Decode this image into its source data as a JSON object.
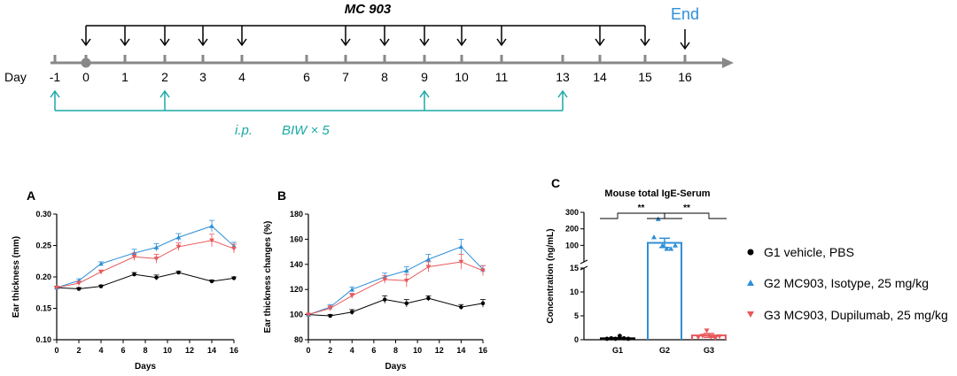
{
  "timeline": {
    "title": "MC 903",
    "end_label": "End",
    "day_label": "Day",
    "days": [
      "-1",
      "0",
      "1",
      "2",
      "3",
      "4",
      "6",
      "7",
      "8",
      "9",
      "10",
      "11",
      "13",
      "14",
      "15",
      "16"
    ],
    "ip_label": "i.p.",
    "ip_schedule": "BIW  × 5",
    "mc903_days": [
      "0",
      "1",
      "2",
      "3",
      "4",
      "7",
      "8",
      "9",
      "10",
      "11",
      "14",
      "15"
    ],
    "end_day": "16",
    "ip_days": [
      "-1",
      "2",
      "9",
      "13"
    ],
    "colors": {
      "axis": "#888888",
      "arrows": "#000000",
      "ip": "#1aa9a6",
      "end": "#2f8fd8"
    }
  },
  "legend": [
    {
      "label": "G1 vehicle, PBS",
      "marker": "circle",
      "color": "#000000"
    },
    {
      "label": "G2 MC903, Isotype, 25 mg/kg",
      "marker": "triangle-up",
      "color": "#2f8fd8"
    },
    {
      "label": "G3 MC903, Dupilumab, 25 mg/kg",
      "marker": "triangle-down",
      "color": "#e8585a"
    }
  ],
  "chart_data": [
    {
      "panel": "A",
      "type": "line",
      "title": "",
      "xlabel": "Days",
      "ylabel": "Ear thickness (mm)",
      "x": [
        0,
        2,
        4,
        7,
        9,
        11,
        14,
        16
      ],
      "xticks": [
        "0",
        "2",
        "4",
        "6",
        "8",
        "10",
        "12",
        "14",
        "16"
      ],
      "yticks": [
        "0.10",
        "0.15",
        "0.20",
        "0.25",
        "0.30"
      ],
      "xlim": [
        0,
        16
      ],
      "ylim": [
        0.1,
        0.3
      ],
      "series": [
        {
          "group": "G1",
          "color": "#000000",
          "marker": "circle",
          "values": [
            0.183,
            0.181,
            0.185,
            0.204,
            0.199,
            0.207,
            0.193,
            0.198
          ],
          "errors": [
            0.002,
            0.002,
            0.002,
            0.003,
            0.004,
            0.002,
            0.002,
            0.002
          ]
        },
        {
          "group": "G2",
          "color": "#2f8fd8",
          "marker": "triangle-up",
          "values": [
            0.183,
            0.194,
            0.221,
            0.238,
            0.247,
            0.263,
            0.281,
            0.249
          ],
          "errors": [
            0.002,
            0.003,
            0.003,
            0.006,
            0.006,
            0.006,
            0.009,
            0.006
          ]
        },
        {
          "group": "G3",
          "color": "#e8585a",
          "marker": "triangle-down",
          "values": [
            0.183,
            0.19,
            0.208,
            0.232,
            0.229,
            0.248,
            0.258,
            0.245
          ],
          "errors": [
            0.002,
            0.003,
            0.003,
            0.006,
            0.007,
            0.006,
            0.01,
            0.007
          ]
        }
      ]
    },
    {
      "panel": "B",
      "type": "line",
      "title": "",
      "xlabel": "Days",
      "ylabel": "Ear thickness changes (%)",
      "x": [
        0,
        2,
        4,
        7,
        9,
        11,
        14,
        16
      ],
      "xticks": [
        "0",
        "2",
        "4",
        "6",
        "8",
        "10",
        "12",
        "14",
        "16"
      ],
      "yticks": [
        "80",
        "100",
        "120",
        "140",
        "160",
        "180"
      ],
      "xlim": [
        0,
        16
      ],
      "ylim": [
        80,
        180
      ],
      "series": [
        {
          "group": "G1",
          "color": "#000000",
          "marker": "circle",
          "values": [
            100,
            99,
            102,
            112,
            109,
            113,
            106,
            109
          ],
          "errors": [
            0.5,
            1,
            2,
            3,
            3,
            2,
            2,
            3
          ]
        },
        {
          "group": "G2",
          "color": "#2f8fd8",
          "marker": "triangle-up",
          "values": [
            100,
            106,
            120,
            130,
            135,
            144,
            154,
            136
          ],
          "errors": [
            0.5,
            2,
            2,
            3,
            3,
            4,
            6,
            3
          ]
        },
        {
          "group": "G3",
          "color": "#e8585a",
          "marker": "triangle-down",
          "values": [
            100,
            105,
            115,
            128,
            127,
            138,
            142,
            135
          ],
          "errors": [
            0.5,
            2,
            2,
            3,
            5,
            4,
            6,
            4
          ]
        }
      ]
    },
    {
      "panel": "C",
      "type": "bar",
      "title": "Mouse total IgE-Serum",
      "xlabel": "",
      "ylabel": "Concentration (ng/mL)",
      "categories": [
        "G1",
        "G2",
        "G3"
      ],
      "colors": [
        "#000000",
        "#2f8fd8",
        "#e8585a"
      ],
      "markers": [
        "circle",
        "triangle-up",
        "triangle-down"
      ],
      "values": [
        0.3,
        115,
        0.9
      ],
      "errors": [
        0.1,
        28,
        0.4
      ],
      "points": [
        [
          0.2,
          0.3,
          0.2,
          0.8,
          0.3,
          0.2
        ],
        [
          150,
          260,
          100,
          80,
          80,
          100
        ],
        [
          0.5,
          0.8,
          1.9,
          0.6,
          0.3,
          0.7
        ]
      ],
      "upper_yticks": [
        "100",
        "200",
        "300"
      ],
      "upper_ylim": [
        0,
        300
      ],
      "lower_yticks": [
        "0",
        "5",
        "10",
        "15"
      ],
      "lower_ylim": [
        0,
        15
      ],
      "significance": [
        {
          "from": "G1",
          "to": "G2",
          "label": "**"
        },
        {
          "from": "G2",
          "to": "G3",
          "label": "**"
        }
      ]
    }
  ]
}
